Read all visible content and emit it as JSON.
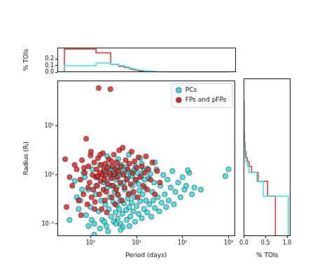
{
  "chart_data": [
    {
      "type": "scatter",
      "xlabel": "Period (days)",
      "ylabel": "Radius (Rⱼ)",
      "log": true,
      "grid": false,
      "legend": "upper right",
      "xlim": [
        0.19,
        1370
      ],
      "xticks": [
        {
          "value": 1,
          "label": "10⁰"
        },
        {
          "value": 10,
          "label": "10¹"
        },
        {
          "value": 100,
          "label": "10²"
        },
        {
          "value": 1000,
          "label": "10³"
        }
      ],
      "ylim": [
        0.056,
        86
      ],
      "yticks": [
        {
          "value": 0.1,
          "label": "10⁻¹"
        },
        {
          "value": 1,
          "label": "10⁰"
        },
        {
          "value": 10,
          "label": "10¹"
        }
      ],
      "series": [
        {
          "name": "PCs",
          "color": "#33e0e0",
          "marker": "circle",
          "x": [
            0.45,
            0.6,
            0.7,
            0.8,
            0.9,
            1.0,
            1.1,
            1.2,
            1.3,
            1.4,
            1.5,
            1.6,
            1.7,
            1.8,
            1.9,
            2.0,
            2.1,
            2.2,
            2.3,
            2.4,
            2.5,
            2.6,
            2.7,
            2.8,
            2.9,
            3.0,
            3.1,
            3.2,
            3.3,
            3.4,
            3.5,
            3.6,
            3.7,
            3.8,
            3.9,
            4.0,
            4.1,
            4.2,
            4.3,
            4.4,
            4.5,
            4.7,
            4.9,
            5.1,
            5.3,
            5.5,
            5.7,
            5.9,
            6.1,
            6.3,
            6.5,
            6.7,
            6.9,
            7.1,
            7.3,
            7.5,
            7.8,
            8.1,
            8.4,
            8.7,
            9.0,
            9.3,
            9.6,
            10,
            10.5,
            11,
            11.5,
            12,
            12.5,
            13,
            13.5,
            14,
            14.5,
            15,
            16,
            17,
            18,
            19,
            20,
            21,
            22,
            23,
            24,
            25,
            27,
            29,
            31,
            33,
            35,
            38,
            41,
            44,
            47,
            50,
            55,
            60,
            65,
            70,
            80,
            90,
            100,
            110,
            120,
            140,
            160,
            180,
            250,
            1000,
            850,
            130,
            0.9,
            1.6,
            2.4,
            3.6,
            5.0,
            1.2,
            7.0,
            2.0,
            4.5,
            1.05,
            1.3,
            1.8,
            2.2,
            2.6,
            3.1,
            3.7,
            4.6,
            5.2,
            6.0,
            8.0,
            9.5,
            11,
            13,
            15,
            17,
            0.55,
            0.65,
            0.75,
            0.5,
            0.35,
            2.3,
            4.0,
            6.8,
            12,
            25
          ],
          "y": [
            0.75,
            0.3,
            1.1,
            0.15,
            0.5,
            0.22,
            1.3,
            0.1,
            0.4,
            0.9,
            0.18,
            1.6,
            0.3,
            0.12,
            0.7,
            1.2,
            0.25,
            0.09,
            0.55,
            1.5,
            0.2,
            0.35,
            1.0,
            0.14,
            0.6,
            1.3,
            0.28,
            0.11,
            0.45,
            1.1,
            0.17,
            0.8,
            0.24,
            1.4,
            0.13,
            0.38,
            0.95,
            0.2,
            1.2,
            0.3,
            0.1,
            0.65,
            0.16,
            1.05,
            0.26,
            0.5,
            1.3,
            0.19,
            0.12,
            0.85,
            0.33,
            1.15,
            0.22,
            0.42,
            0.14,
            1.0,
            0.27,
            0.6,
            0.18,
            1.25,
            0.35,
            0.11,
            0.75,
            0.23,
            1.1,
            0.16,
            0.48,
            0.29,
            0.95,
            0.13,
            0.4,
            1.2,
            0.2,
            0.55,
            0.3,
            0.17,
            0.85,
            0.25,
            1.05,
            0.14,
            0.45,
            0.3,
            0.7,
            0.21,
            1.3,
            0.35,
            0.18,
            0.6,
            0.27,
            1.0,
            0.4,
            0.22,
            0.8,
            0.3,
            0.55,
            1.2,
            0.25,
            0.45,
            0.7,
            0.35,
            0.9,
            0.5,
            0.6,
            1.1,
            0.4,
            0.55,
            0.5,
            1.3,
            0.95,
            1.25,
            0.09,
            0.08,
            0.07,
            0.1,
            0.085,
            0.06,
            0.09,
            0.11,
            0.075,
            0.12,
            0.6,
            1.0,
            0.75,
            1.25,
            0.9,
            0.55,
            1.6,
            0.7,
            1.45,
            0.95,
            1.5,
            0.65,
            1.7,
            0.8,
            1.35,
            0.2,
            0.5,
            0.9,
            0.35,
            0.12,
            2.4,
            2.1,
            2.6,
            2.2,
            1.8
          ]
        },
        {
          "name": "FPs and pFPs",
          "color": "#e02424",
          "marker": "circle",
          "x": [
            0.28,
            0.3,
            0.4,
            0.5,
            0.55,
            0.6,
            0.65,
            0.7,
            0.75,
            0.8,
            0.85,
            0.9,
            0.95,
            1.0,
            1.05,
            1.1,
            1.15,
            1.2,
            1.25,
            1.3,
            1.35,
            1.4,
            1.45,
            1.5,
            1.55,
            1.6,
            1.65,
            1.7,
            1.75,
            1.8,
            1.85,
            1.9,
            1.95,
            2.0,
            2.05,
            2.1,
            2.15,
            2.2,
            2.3,
            2.4,
            2.5,
            2.6,
            2.7,
            2.8,
            2.9,
            3.0,
            3.1,
            3.2,
            3.3,
            3.4,
            3.5,
            3.6,
            3.7,
            3.8,
            3.9,
            4.0,
            4.2,
            4.4,
            4.6,
            4.8,
            5.0,
            5.2,
            5.5,
            5.8,
            6.1,
            6.4,
            6.7,
            7.0,
            7.4,
            7.8,
            8.2,
            8.6,
            9.0,
            9.5,
            10,
            10.5,
            11,
            12,
            13,
            14,
            15,
            16,
            17,
            18,
            20,
            22,
            25,
            28,
            32,
            0.35,
            0.45,
            0.62,
            0.72,
            0.88,
            1.02,
            1.22,
            1.42,
            1.62,
            2.25,
            2.85
          ],
          "y": [
            2.1,
            0.22,
            0.6,
            1.3,
            0.3,
            0.8,
            2.0,
            0.4,
            1.1,
            5.5,
            0.25,
            1.5,
            0.7,
            2.5,
            0.35,
            1.0,
            0.5,
            1.8,
            0.28,
            0.9,
            1.3,
            0.6,
            2.2,
            60,
            0.4,
            1.1,
            0.75,
            1.6,
            0.2,
            1.0,
            2.8,
            0.5,
            1.3,
            0.8,
            0.3,
            1.7,
            1.0,
            0.45,
            1.4,
            0.65,
            2.1,
            1.1,
            57,
            0.85,
            0.35,
            1.5,
            0.6,
            2.6,
            1.0,
            0.25,
            1.3,
            0.5,
            1.8,
            0.9,
            0.4,
            1.2,
            3.2,
            0.7,
            1.5,
            0.3,
            3.6,
            1.0,
            0.55,
            2.0,
            0.8,
            1.3,
            0.4,
            1.7,
            0.65,
            3.0,
            1.1,
            0.45,
            1.9,
            0.8,
            1.4,
            0.35,
            2.3,
            0.9,
            1.5,
            0.6,
            1.1,
            2.4,
            0.5,
            1.3,
            0.8,
            1.8,
            0.4,
            1.2,
            0.7,
            0.9,
            1.6,
            0.15,
            1.4,
            0.55,
            3.0,
            0.2,
            0.95,
            2.6,
            0.17,
            1.9
          ]
        }
      ]
    },
    {
      "type": "histogram",
      "ylabel": "% TOIs",
      "log": "x",
      "grid": false,
      "tick_labels": "y",
      "xlim": [
        0.19,
        1370
      ],
      "ylim": [
        0,
        0.37
      ],
      "yticks": [
        {
          "value": 0,
          "label": "0.0"
        },
        0.1,
        0.2
      ],
      "series": [
        {
          "color": "#33e0e0",
          "bins": [
            0.27,
            1.3,
            2.7,
            4.0,
            5.4,
            6.8,
            8.2,
            9.6,
            11,
            14,
            18,
            25,
            40,
            100,
            1000
          ],
          "counts": [
            0.1,
            0.14,
            0.12,
            0.1,
            0.08,
            0.06,
            0.05,
            0.04,
            0.03,
            0.02,
            0.012,
            0.006,
            0.003,
            0.001
          ]
        },
        {
          "color": "#e02424",
          "bins": [
            0.27,
            1.3,
            2.7,
            4.0,
            5.4,
            6.8,
            8.2,
            9.6,
            11,
            14,
            18,
            25,
            40,
            100,
            1000
          ],
          "counts": [
            0.35,
            0.29,
            0.12,
            0.09,
            0.07,
            0.05,
            0.04,
            0.03,
            0.02,
            0.015,
            0.008,
            0.004,
            0.002,
            0.001
          ]
        }
      ]
    },
    {
      "type": "histogram",
      "orientation": "horizontal",
      "xlabel": "% TOIs",
      "log": "y",
      "grid": false,
      "tick_labels": "x",
      "xlim": [
        0,
        1.08
      ],
      "xticks": [
        {
          "value": 0,
          "label": "0.0"
        },
        0.5,
        {
          "value": 1,
          "label": "1.0"
        }
      ],
      "ylim": [
        0.056,
        86
      ],
      "series": [
        {
          "color": "#33e0e0",
          "bins": [
            0.05,
            0.36,
            0.72,
            1.08,
            1.44,
            1.8,
            2.16,
            2.9,
            4.3,
            7,
            30
          ],
          "counts": [
            1.03,
            0.45,
            0.3,
            0.12,
            0.08,
            0.05,
            0.03,
            0.02,
            0.01,
            0.005
          ]
        },
        {
          "color": "#e02424",
          "bins": [
            0.05,
            0.36,
            0.72,
            1.08,
            1.44,
            1.8,
            2.16,
            2.9,
            4.3,
            7,
            30
          ],
          "counts": [
            0.73,
            0.55,
            0.33,
            0.18,
            0.12,
            0.08,
            0.05,
            0.03,
            0.015,
            0.01
          ]
        }
      ]
    }
  ]
}
